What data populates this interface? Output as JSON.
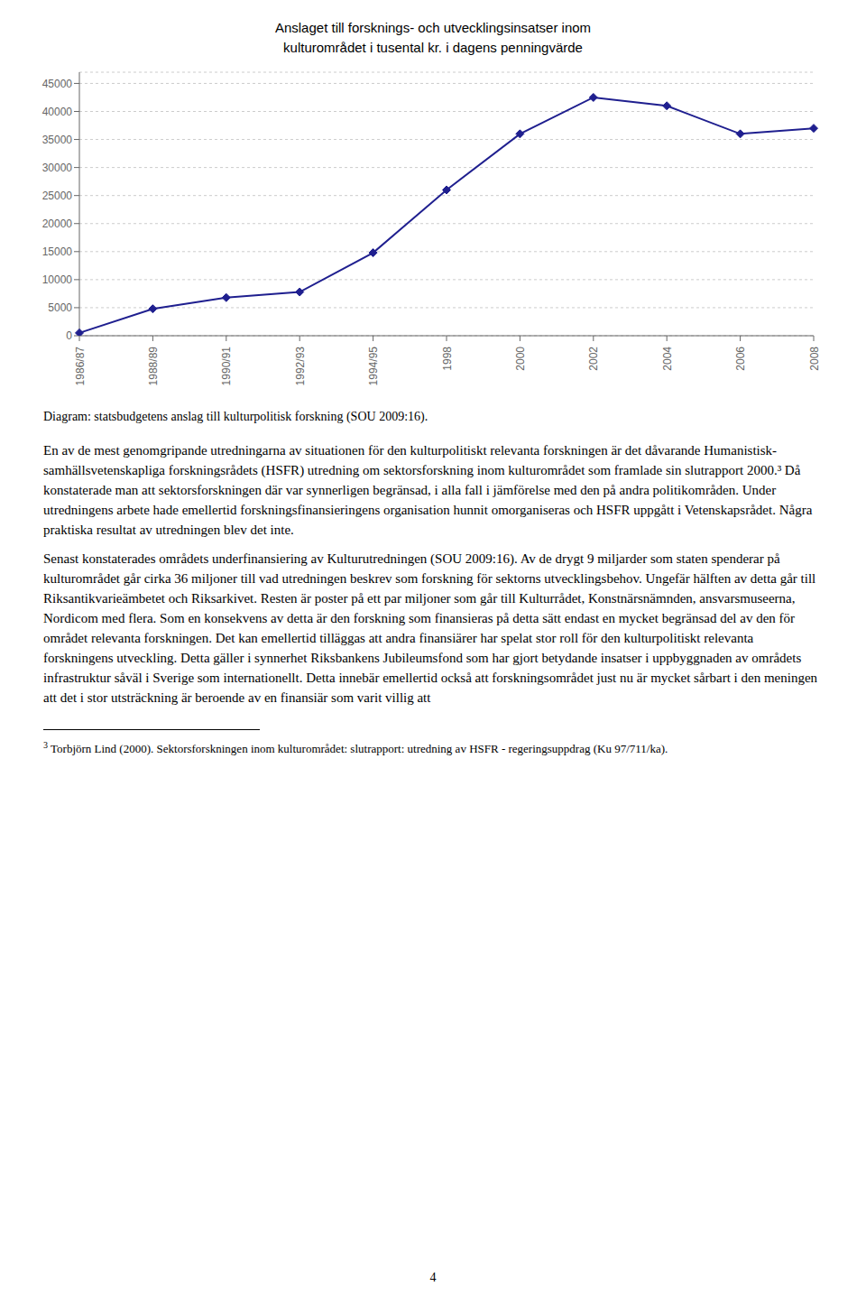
{
  "chart_data": {
    "type": "line",
    "title": "Anslaget till forsknings- och utvecklingsinsatser inom",
    "subtitle": "kulturområdet i tusental kr. i dagens penningvärde",
    "categories": [
      "1986/87",
      "1988/89",
      "1990/91",
      "1992/93",
      "1994/95",
      "1998",
      "2000",
      "2002",
      "2004",
      "2006",
      "2008"
    ],
    "values": [
      500,
      4800,
      6800,
      7800,
      14800,
      26000,
      36000,
      42500,
      41000,
      36000,
      37000
    ],
    "color": "#1F1F8F",
    "marker": "diamond",
    "ylim": [
      0,
      47000
    ],
    "yticks": [
      0,
      5000,
      10000,
      15000,
      20000,
      25000,
      30000,
      35000,
      40000,
      45000
    ],
    "grid": true,
    "annotations": [
      "Diagram: statsbudgetens anslag till kulturpolitisk forskning (SOU 2009:16).",
      "En av de mest genomgripande utredningarna av situationen för den kulturpolitiskt relevanta forskningen är det dåvarande Humanistisk-samhällsvetenskapliga forskningsrådets (HSFR) utredning om sektorsforskning inom kulturområdet som framlade sin slutrapport 2000.³ Då konstaterade man att sektorsforskningen där var synnerligen begränsad, i alla fall i jämförelse med den på andra politikområden. Under utredningens arbete hade emellertid forskningsfinansieringens organisation hunnit omorganiseras och HSFR uppgått i Vetenskapsrådet. Några praktiska resultat av utredningen blev det inte.",
      "Senast konstaterades områdets underfinansiering av Kulturutredningen (SOU 2009:16). Av de drygt 9 miljarder som staten spenderar på kulturområdet går cirka 36 miljoner till vad utredningen beskrev som forskning för sektorns utvecklingsbehov. Ungefär hälften av detta går till Riksantikvarieämbetet och Riksarkivet. Resten är poster på ett par miljoner som går till Kulturrådet, Konstnärsnämnden, ansvarsmuseerna, Nordicom med flera. Som en konsekvens av detta är den forskning som finansieras på detta sätt endast en mycket begränsad del av den för området relevanta forskningen. Det kan emellertid tilläggas att andra finansiärer har spelat stor roll för den kulturpolitiskt relevanta forskningens utveckling. Detta gäller i synnerhet Riksbankens Jubileumsfond som har gjort betydande insatser i uppbyggnaden av områdets infrastruktur såväl i Sverige som internationellt. Detta innebär emellertid också att forskningsområdet just nu är mycket sårbart i den meningen att det i stor utsträckning är beroende av en finansiär som varit villig att",
      "3",
      "Torbjörn Lind (2000). Sektorsforskningen inom kulturområdet: slutrapport: utredning av HSFR - regeringsuppdrag (Ku 97/711/ka).",
      "4"
    ]
  }
}
